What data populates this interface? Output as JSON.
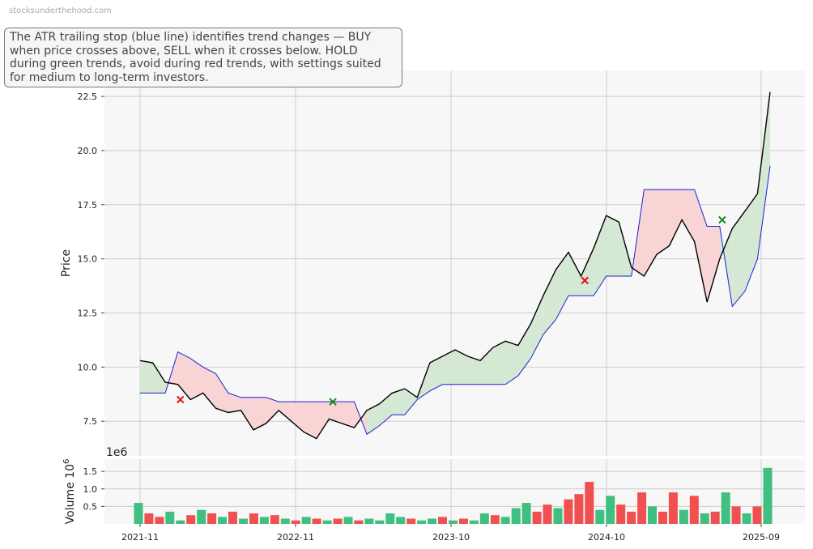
{
  "watermark": "stocksunderthehood.com",
  "note": "The ATR trailing stop (blue line) identifies trend changes — BUY when price crosses above, SELL when it crosses below. HOLD during green trends, avoid during red trends, with settings suited for medium to long-term investors.",
  "colors": {
    "price": "#000000",
    "stop": "#1f1fd6",
    "up_fill": "#d4e8d4",
    "down_fill": "#f8d4d4",
    "buy": "#1a8a1a",
    "sell": "#e01010",
    "vol_up": "#3fbf80",
    "vol_down": "#f05050",
    "panel_bg": "#f7f7f7",
    "grid": "#cccccc"
  },
  "chart_data": [
    {
      "type": "line",
      "ylabel": "Price",
      "ylim": [
        5.9,
        23.7
      ],
      "y_ticks": [
        "7.5",
        "10.0",
        "12.5",
        "15.0",
        "17.5",
        "20.0",
        "22.5"
      ],
      "x_ticks": [
        "2021-11",
        "2022-11",
        "2023-10",
        "2024-10",
        "2025-09"
      ],
      "grid": true,
      "series": [
        {
          "role": "price",
          "x": [
            0,
            1,
            2,
            3,
            4,
            5,
            6,
            7,
            8,
            9,
            10,
            11,
            12,
            13,
            14,
            15,
            16,
            17,
            18,
            19,
            20,
            21,
            22,
            23,
            24,
            25,
            26,
            27,
            28,
            29,
            30,
            31,
            32,
            33,
            34,
            35,
            36,
            37,
            38,
            39,
            40,
            41,
            42,
            43,
            44,
            45,
            46,
            47,
            48,
            49,
            50
          ],
          "values": [
            10.3,
            10.2,
            9.3,
            9.2,
            8.5,
            8.8,
            8.1,
            7.9,
            8.0,
            7.1,
            7.4,
            8.0,
            7.5,
            7.0,
            6.7,
            7.6,
            7.4,
            7.2,
            8.0,
            8.3,
            8.8,
            9.0,
            8.6,
            10.2,
            10.5,
            10.8,
            10.5,
            10.3,
            10.9,
            11.2,
            11.0,
            12.0,
            13.3,
            14.5,
            15.3,
            14.2,
            15.5,
            17.0,
            16.7,
            14.6,
            14.2,
            15.2,
            15.6,
            16.8,
            15.8,
            13.0,
            15.0,
            16.4,
            17.2,
            18.0,
            22.7
          ]
        },
        {
          "role": "stop",
          "x": [
            0,
            1,
            2,
            3,
            4,
            5,
            6,
            7,
            8,
            9,
            10,
            11,
            12,
            13,
            14,
            15,
            16,
            17,
            18,
            19,
            20,
            21,
            22,
            23,
            24,
            25,
            26,
            27,
            28,
            29,
            30,
            31,
            32,
            33,
            34,
            35,
            36,
            37,
            38,
            39,
            40,
            41,
            42,
            43,
            44,
            45,
            46,
            47,
            48,
            49,
            50
          ],
          "values": [
            8.8,
            8.8,
            8.8,
            10.7,
            10.4,
            10.0,
            9.7,
            8.8,
            8.6,
            8.6,
            8.6,
            8.4,
            8.4,
            8.4,
            8.4,
            8.4,
            8.4,
            8.4,
            6.9,
            7.3,
            7.8,
            7.8,
            8.5,
            8.9,
            9.2,
            9.2,
            9.2,
            9.2,
            9.2,
            9.2,
            9.6,
            10.4,
            11.5,
            12.2,
            13.3,
            13.3,
            13.3,
            14.2,
            14.2,
            14.2,
            18.2,
            18.2,
            18.2,
            18.2,
            18.2,
            16.5,
            16.5,
            12.8,
            13.5,
            15.0,
            19.3
          ]
        }
      ],
      "signals": [
        {
          "kind": "sell",
          "x": 3.2,
          "y": 8.5
        },
        {
          "kind": "buy",
          "x": 15.3,
          "y": 8.4
        },
        {
          "kind": "sell",
          "x": 35.3,
          "y": 14.0
        },
        {
          "kind": "buy",
          "x": 46.2,
          "y": 16.8
        }
      ]
    },
    {
      "type": "bar",
      "ylabel": "Volume",
      "multiplier": "1e6",
      "ylabel_suffix": "10",
      "ylabel_exp": "6",
      "ylim": [
        0,
        1.85
      ],
      "y_ticks": [
        "0.5",
        "1.0",
        "1.5"
      ],
      "x_ticks": [
        "2021-11",
        "2022-11",
        "2023-10",
        "2024-10",
        "2025-09"
      ],
      "grid": true,
      "values": [
        0.6,
        0.3,
        0.2,
        0.35,
        0.1,
        0.25,
        0.4,
        0.3,
        0.2,
        0.35,
        0.15,
        0.3,
        0.2,
        0.25,
        0.15,
        0.1,
        0.2,
        0.15,
        0.1,
        0.15,
        0.2,
        0.1,
        0.15,
        0.1,
        0.3,
        0.2,
        0.15,
        0.1,
        0.15,
        0.2,
        0.1,
        0.15,
        0.1,
        0.3,
        0.25,
        0.2,
        0.45,
        0.6,
        0.35,
        0.55,
        0.45,
        0.7,
        0.85,
        1.2,
        0.4,
        0.8,
        0.55,
        0.35,
        0.9,
        0.5,
        0.35,
        0.9,
        0.4,
        0.8,
        0.3,
        0.35,
        0.9,
        0.5,
        0.3,
        0.5,
        1.6
      ],
      "directions": [
        "up",
        "down",
        "down",
        "up",
        "up",
        "down",
        "up",
        "down",
        "up",
        "down",
        "up",
        "down",
        "up",
        "down",
        "up",
        "down",
        "up",
        "down",
        "up",
        "down",
        "up",
        "down",
        "up",
        "up",
        "up",
        "up",
        "down",
        "up",
        "up",
        "down",
        "up",
        "down",
        "up",
        "up",
        "down",
        "up",
        "up",
        "up",
        "down",
        "down",
        "up",
        "down",
        "down",
        "down",
        "up",
        "up",
        "down",
        "down",
        "down",
        "up",
        "down",
        "down",
        "up",
        "down",
        "up",
        "down",
        "up",
        "down",
        "up",
        "down",
        "up"
      ]
    }
  ]
}
